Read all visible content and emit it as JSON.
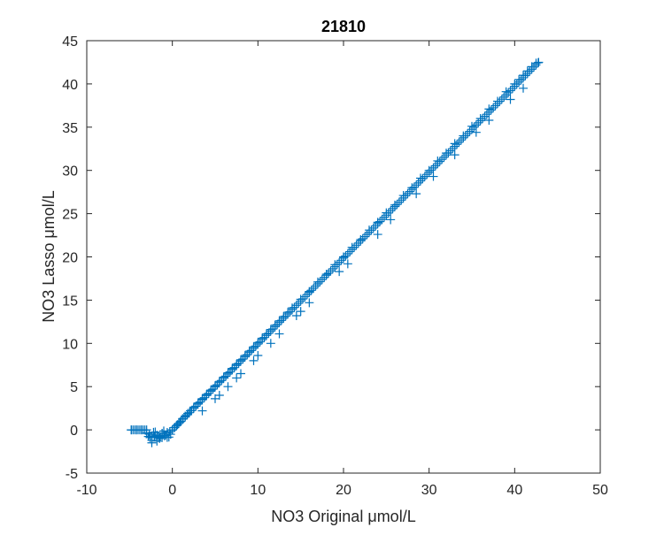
{
  "chart_data": {
    "type": "scatter",
    "title": "21810",
    "xlabel": "NO3 Original μmol/L",
    "ylabel": "NO3 Lasso μmol/L",
    "xlim": [
      -10,
      50
    ],
    "ylim": [
      -5,
      45
    ],
    "xticks": [
      -10,
      0,
      10,
      20,
      30,
      40,
      50
    ],
    "yticks": [
      -5,
      0,
      5,
      10,
      15,
      20,
      25,
      30,
      35,
      40,
      45
    ],
    "xtick_labels": [
      "-10",
      "0",
      "10",
      "20",
      "30",
      "40",
      "50"
    ],
    "ytick_labels": [
      "-5",
      "0",
      "5",
      "10",
      "15",
      "20",
      "25",
      "30",
      "35",
      "40",
      "45"
    ],
    "marker": "+",
    "grid": false,
    "box": true,
    "colors": {
      "marker": "#0072BD",
      "axis": "#262626",
      "background": "#ffffff"
    },
    "series": [
      {
        "x": [
          -4.8,
          -4.2,
          -3.6,
          -3.0,
          -2.7,
          -2.4,
          -2.1,
          -1.8,
          -1.5,
          -1.2,
          -0.9,
          -0.6,
          -0.3,
          0.0,
          0.3,
          0.6,
          0.9,
          1.2,
          1.5,
          1.8,
          2.1,
          2.5,
          3.0,
          3.5,
          4.0,
          4.5,
          5.0,
          5.5,
          6.0,
          6.5,
          7.0,
          7.5,
          8.0,
          8.5,
          9.0,
          9.5,
          10.0,
          10.5,
          11.0,
          11.5,
          12.0,
          12.5,
          13.0,
          13.5,
          14.0,
          15.0,
          16.0,
          17.0,
          18.0,
          19.0,
          20.0,
          21.0,
          22.0,
          23.0,
          24.0,
          25.0,
          26.0,
          27.0,
          28.0,
          29.0,
          30.0,
          31.0,
          32.0,
          33.0,
          34.0,
          35.0,
          36.0,
          37.0,
          38.0,
          39.0,
          40.0,
          40.5,
          41.0,
          41.5,
          42.0,
          42.5,
          42.8,
          -2.4,
          -1.8,
          -1.2,
          3.5,
          5.5,
          7.5,
          9.5,
          11.5,
          14.5,
          16.0,
          20.5,
          24.0,
          28.5,
          33.0,
          37.0,
          41.0,
          5.0,
          6.5,
          8.0,
          10.0,
          12.5,
          15.0,
          19.5,
          25.5,
          30.5,
          35.5,
          39.5
        ],
        "y": [
          0.0,
          0.0,
          0.0,
          0.0,
          -0.5,
          -1.2,
          -0.8,
          -0.6,
          -1.0,
          -0.4,
          -0.7,
          -0.3,
          -0.2,
          0.0,
          0.3,
          0.6,
          0.9,
          1.3,
          1.6,
          1.9,
          2.2,
          2.6,
          3.1,
          3.6,
          4.1,
          4.6,
          5.1,
          5.6,
          6.1,
          6.6,
          7.1,
          7.6,
          8.1,
          8.6,
          9.1,
          9.6,
          10.1,
          10.6,
          11.1,
          11.6,
          12.1,
          12.6,
          13.1,
          13.6,
          14.1,
          15.1,
          16.0,
          17.1,
          18.0,
          19.1,
          20.0,
          21.1,
          22.0,
          23.1,
          24.0,
          25.1,
          26.0,
          27.1,
          28.0,
          29.1,
          30.0,
          31.1,
          32.0,
          33.1,
          34.0,
          35.1,
          36.0,
          37.1,
          38.0,
          39.1,
          40.0,
          40.5,
          41.0,
          41.5,
          42.0,
          42.4,
          42.5,
          -1.5,
          -1.3,
          -0.9,
          2.2,
          4.0,
          6.0,
          8.0,
          10.0,
          13.2,
          14.7,
          19.2,
          22.6,
          27.3,
          31.8,
          35.8,
          39.5,
          3.6,
          5.0,
          6.5,
          8.6,
          11.1,
          13.7,
          18.3,
          24.3,
          29.3,
          34.4,
          38.2
        ]
      }
    ]
  }
}
